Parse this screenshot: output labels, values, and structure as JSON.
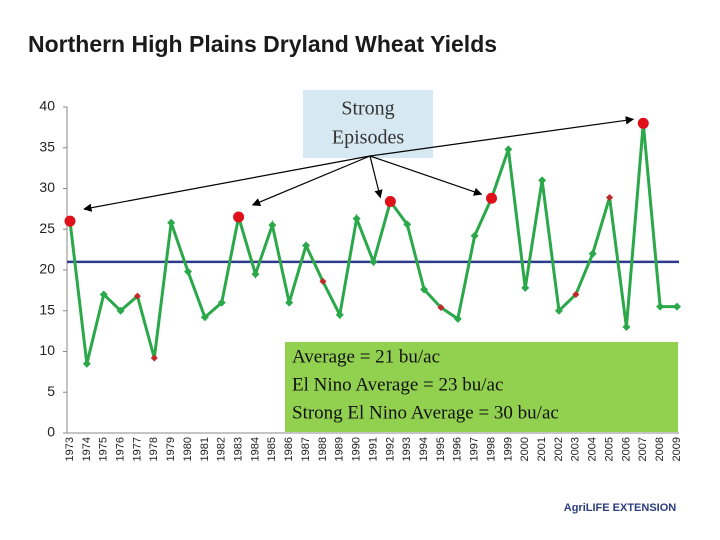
{
  "chart_data": {
    "type": "line",
    "title": "Northern High Plains Dryland Wheat Yields",
    "categories": [
      "1973",
      "1974",
      "1975",
      "1976",
      "1977",
      "1978",
      "1979",
      "1980",
      "1981",
      "1982",
      "1983",
      "1984",
      "1985",
      "1986",
      "1987",
      "1988",
      "1989",
      "1990",
      "1991",
      "1992",
      "1993",
      "1994",
      "1995",
      "1996",
      "1997",
      "1998",
      "1999",
      "2000",
      "2001",
      "2002",
      "2003",
      "2004",
      "2005",
      "2006",
      "2007",
      "2008",
      "2009"
    ],
    "series": [
      {
        "name": "Yield",
        "color": "#2aa84a",
        "values": [
          26,
          8.5,
          17,
          15,
          16.8,
          9.2,
          25.8,
          19.8,
          14.2,
          16,
          26.5,
          19.5,
          25.5,
          16,
          23,
          18.6,
          14.5,
          26.3,
          21,
          28.4,
          25.6,
          17.6,
          15.4,
          14,
          24.2,
          28.8,
          34.8,
          17.8,
          31,
          15,
          17,
          22,
          28.9,
          13,
          38,
          15.5,
          15.5
        ],
        "markers": [
          "circle",
          "diamond",
          "diamond",
          "diamond",
          "diamond",
          "diamond",
          "diamond",
          "diamond",
          "diamond",
          "diamond",
          "circle",
          "diamond",
          "diamond",
          "diamond",
          "diamond",
          "diamond",
          "diamond",
          "diamond",
          "diamond",
          "circle",
          "diamond",
          "diamond",
          "diamond",
          "diamond",
          "diamond",
          "circle",
          "diamond",
          "diamond",
          "diamond",
          "diamond",
          "diamond",
          "diamond",
          "diamond",
          "diamond",
          "circle",
          "diamond",
          "diamond"
        ],
        "marker_colors": [
          "#e0101a",
          "#2aa84a",
          "#2aa84a",
          "#2aa84a",
          "#c0282a",
          "#c0282a",
          "#2aa84a",
          "#2aa84a",
          "#2aa84a",
          "#2aa84a",
          "#e0101a",
          "#2aa84a",
          "#2aa84a",
          "#2aa84a",
          "#2aa84a",
          "#c0282a",
          "#2aa84a",
          "#2aa84a",
          "#2aa84a",
          "#e0101a",
          "#2aa84a",
          "#2aa84a",
          "#c0282a",
          "#2aa84a",
          "#2aa84a",
          "#e0101a",
          "#2aa84a",
          "#2aa84a",
          "#2aa84a",
          "#2aa84a",
          "#c0282a",
          "#2aa84a",
          "#c0282a",
          "#2aa84a",
          "#e0101a",
          "#2aa84a",
          "#2aa84a"
        ]
      }
    ],
    "average": 21,
    "average_color": "#2e3a8c",
    "ylim": [
      0,
      40
    ],
    "yticks": [
      0,
      5,
      10,
      15,
      20,
      25,
      30,
      35,
      40
    ],
    "grid": false,
    "annotations": {
      "episodes": [
        "Strong",
        "Episodes"
      ],
      "averages": [
        "Average = 21 bu/ac",
        "El Nino Average = 23 bu/ac",
        "Strong El Nino Average = 30 bu/ac"
      ]
    },
    "logo": "AgriLIFE EXTENSION"
  }
}
